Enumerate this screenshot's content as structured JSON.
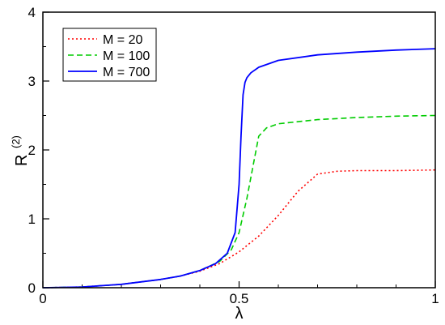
{
  "chart_data": {
    "type": "line",
    "xlabel": "λ",
    "ylabel": "R",
    "ylabel_sup": "(2)",
    "xlim": [
      0,
      1
    ],
    "ylim": [
      0,
      4
    ],
    "xticks": [
      "0",
      "0.5",
      "1"
    ],
    "yticks": [
      "0",
      "1",
      "2",
      "3",
      "4"
    ],
    "grid": false,
    "legend_placement": "top-left",
    "series": [
      {
        "name": "M = 20",
        "color": "#ff0000",
        "style": "dotted",
        "x": [
          0,
          0.1,
          0.2,
          0.3,
          0.35,
          0.4,
          0.45,
          0.5,
          0.55,
          0.6,
          0.65,
          0.7,
          0.75,
          0.8,
          0.9,
          1.0
        ],
        "y": [
          0,
          0.01,
          0.05,
          0.12,
          0.17,
          0.24,
          0.35,
          0.52,
          0.75,
          1.05,
          1.4,
          1.65,
          1.69,
          1.7,
          1.7,
          1.71
        ]
      },
      {
        "name": "M = 100",
        "color": "#00cc00",
        "style": "dashed",
        "x": [
          0,
          0.1,
          0.2,
          0.3,
          0.35,
          0.4,
          0.45,
          0.48,
          0.5,
          0.52,
          0.54,
          0.55,
          0.57,
          0.6,
          0.7,
          0.8,
          0.9,
          1.0
        ],
        "y": [
          0,
          0.01,
          0.05,
          0.12,
          0.17,
          0.25,
          0.38,
          0.55,
          0.8,
          1.3,
          1.9,
          2.2,
          2.32,
          2.38,
          2.44,
          2.47,
          2.49,
          2.5
        ]
      },
      {
        "name": "M = 700",
        "color": "#0000ff",
        "style": "solid",
        "x": [
          0,
          0.1,
          0.2,
          0.3,
          0.35,
          0.4,
          0.44,
          0.47,
          0.49,
          0.5,
          0.505,
          0.51,
          0.515,
          0.52,
          0.53,
          0.55,
          0.6,
          0.7,
          0.8,
          0.9,
          1.0
        ],
        "y": [
          0,
          0.01,
          0.05,
          0.12,
          0.17,
          0.25,
          0.35,
          0.5,
          0.8,
          1.5,
          2.2,
          2.8,
          2.98,
          3.05,
          3.12,
          3.2,
          3.3,
          3.38,
          3.42,
          3.45,
          3.47
        ]
      }
    ]
  }
}
